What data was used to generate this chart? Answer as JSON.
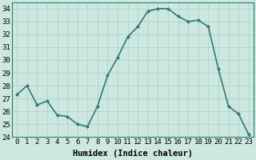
{
  "x": [
    0,
    1,
    2,
    3,
    4,
    5,
    6,
    7,
    8,
    9,
    10,
    11,
    12,
    13,
    14,
    15,
    16,
    17,
    18,
    19,
    20,
    21,
    22,
    23
  ],
  "y": [
    27.3,
    28.0,
    26.5,
    26.8,
    25.7,
    25.6,
    25.0,
    24.8,
    26.4,
    28.8,
    30.2,
    31.8,
    32.6,
    33.8,
    34.0,
    34.0,
    33.4,
    33.0,
    33.1,
    32.6,
    29.3,
    26.4,
    25.8,
    24.2
  ],
  "line_color": "#2e7d6e",
  "marker": "D",
  "marker_size": 2.0,
  "linewidth": 1.2,
  "xlabel": "Humidex (Indice chaleur)",
  "xlabel_fontsize": 7.5,
  "ylim": [
    24,
    34.5
  ],
  "yticks": [
    24,
    25,
    26,
    27,
    28,
    29,
    30,
    31,
    32,
    33,
    34
  ],
  "xticks": [
    0,
    1,
    2,
    3,
    4,
    5,
    6,
    7,
    8,
    9,
    10,
    11,
    12,
    13,
    14,
    15,
    16,
    17,
    18,
    19,
    20,
    21,
    22,
    23
  ],
  "xtick_labels": [
    "0",
    "1",
    "2",
    "3",
    "4",
    "5",
    "6",
    "7",
    "8",
    "9",
    "10",
    "11",
    "12",
    "13",
    "14",
    "15",
    "16",
    "17",
    "18",
    "19",
    "20",
    "21",
    "22",
    "23"
  ],
  "background_color": "#cce8e0",
  "grid_color": "#aacfc7",
  "tick_fontsize": 6.5,
  "spine_color": "#2e7d6e"
}
